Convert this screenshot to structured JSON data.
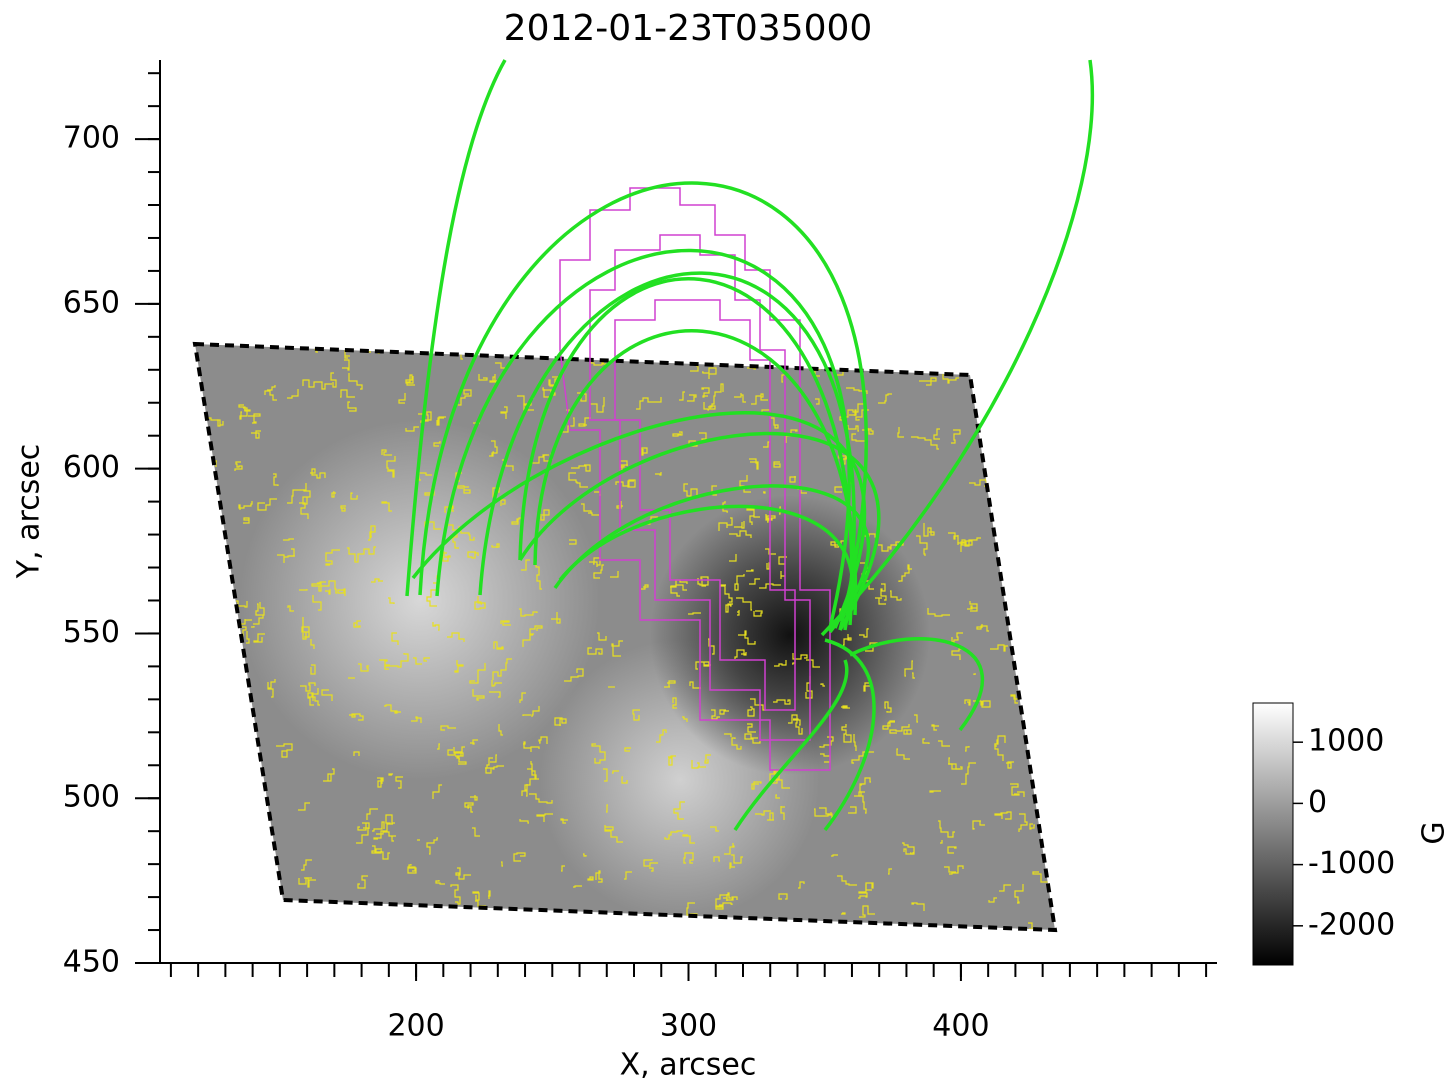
{
  "chart_data": {
    "type": "image",
    "title": "2012-01-23T035000",
    "x_label": "X, arcsec",
    "y_label": "Y, arcsec",
    "xlim": [
      106,
      494
    ],
    "ylim": [
      450,
      724
    ],
    "xticks": [
      200,
      300,
      400
    ],
    "yticks": [
      450,
      500,
      550,
      600,
      650,
      700
    ],
    "colorbar": {
      "label": "G",
      "lim": [
        -2640,
        1640
      ],
      "ticks": [
        1000,
        0,
        -1000,
        -2000
      ]
    }
  }
}
